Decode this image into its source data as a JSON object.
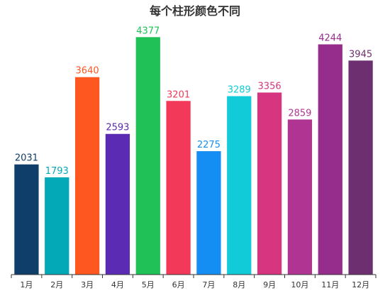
{
  "chart_data": {
    "type": "bar",
    "title": "每个柱形颜色不同",
    "categories": [
      "1月",
      "2月",
      "3月",
      "4月",
      "5月",
      "6月",
      "7月",
      "8月",
      "9月",
      "10月",
      "11月",
      "12月"
    ],
    "values": [
      2031,
      1793,
      3640,
      2593,
      4377,
      3201,
      2275,
      3289,
      3356,
      2859,
      4244,
      3945
    ],
    "colors": [
      "#0f3e6b",
      "#03a9b7",
      "#fe5720",
      "#5b2bb3",
      "#20c156",
      "#f3395a",
      "#148ef2",
      "#11ccd8",
      "#d7357f",
      "#b03592",
      "#962d8c",
      "#6d2f6f"
    ],
    "xlabel": "",
    "ylabel": "",
    "ylim": [
      0,
      4800
    ],
    "grid": false,
    "legend": "none"
  }
}
